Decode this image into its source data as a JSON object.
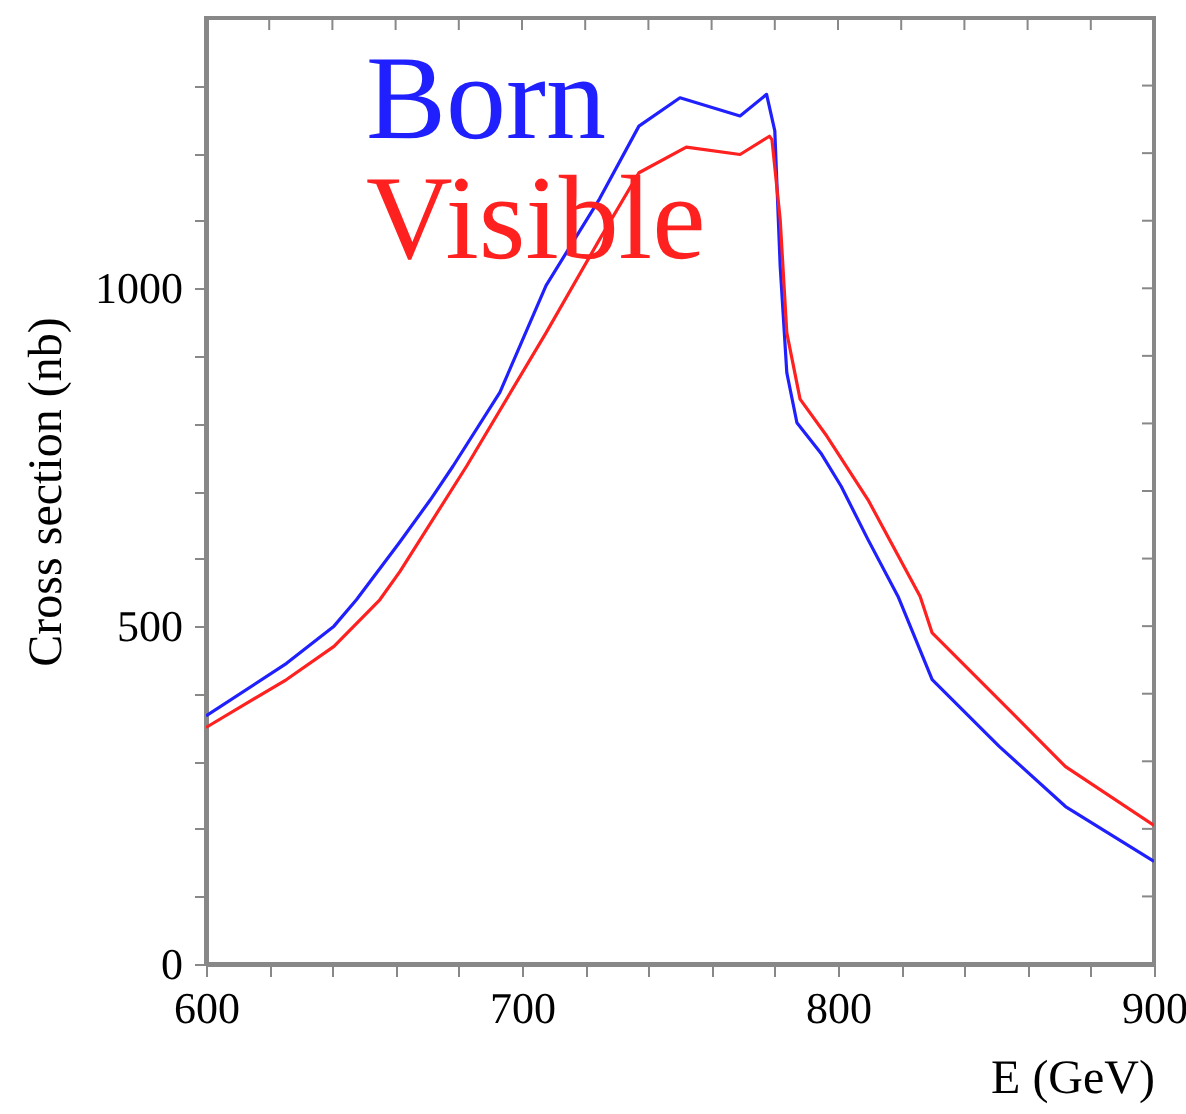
{
  "chart_data": {
    "type": "line",
    "xlabel": "E (GeV)",
    "ylabel": "Cross section (nb)",
    "xlim": [
      600,
      900
    ],
    "ylim": [
      0,
      1400
    ],
    "xticks": [
      600,
      {
        "value": 620,
        "label": null
      },
      {
        "value": 640,
        "label": null
      },
      {
        "value": 660,
        "label": null
      },
      {
        "value": 680,
        "label": null
      },
      700,
      {
        "value": 720,
        "label": null
      },
      {
        "value": 740,
        "label": null
      },
      {
        "value": 760,
        "label": null
      },
      {
        "value": 780,
        "label": null
      },
      800,
      {
        "value": 820,
        "label": null
      },
      {
        "value": 840,
        "label": null
      },
      {
        "value": 860,
        "label": null
      },
      {
        "value": 880,
        "label": null
      },
      900
    ],
    "yticks": [
      0,
      {
        "value": 100,
        "label": null
      },
      {
        "value": 200,
        "label": null
      },
      {
        "value": 300,
        "label": null
      },
      {
        "value": 400,
        "label": null
      },
      500,
      {
        "value": 600,
        "label": null
      },
      {
        "value": 700,
        "label": null
      },
      {
        "value": 800,
        "label": null
      },
      {
        "value": 900,
        "label": null
      },
      1000,
      {
        "value": 1100,
        "label": null
      },
      {
        "value": 1200,
        "label": null
      },
      {
        "value": 1300,
        "label": null
      }
    ],
    "grid": false,
    "legend": "top left",
    "marker": "none",
    "line_style": "solid",
    "series": [
      {
        "name": "Born",
        "color": "#2020ff",
        "x": [
          600,
          625.5,
          640.5,
          647.6,
          661.4,
          671,
          678.2,
          693,
          707.6,
          724.5,
          737,
          750,
          769,
          777.4,
          780,
          781.7,
          783.8,
          787,
          794.6,
          801,
          809.5,
          819,
          829.8,
          851,
          872,
          900
        ],
        "values": [
          367,
          445,
          500,
          539,
          625,
          687,
          737,
          846,
          1004,
          1132,
          1240,
          1282,
          1255,
          1287,
          1233,
          1033,
          875,
          801,
          756,
          707,
          628,
          544,
          421,
          322,
          233,
          152
        ]
      },
      {
        "name": "Visible",
        "color": "#ff2020",
        "x": [
          600,
          625.5,
          640.5,
          655,
          661.4,
          682.5,
          707.6,
          724.5,
          737,
          752,
          769,
          778.3,
          779.1,
          781.7,
          783.8,
          788,
          796.5,
          809.5,
          826,
          829.8,
          851,
          872,
          900
        ],
        "values": [
          350,
          421,
          470,
          539,
          581,
          737,
          934,
          1072,
          1171,
          1209,
          1198,
          1225,
          1220,
          1102,
          934,
          836,
          781,
          687,
          544,
          490,
          391,
          292,
          205
        ]
      }
    ]
  }
}
